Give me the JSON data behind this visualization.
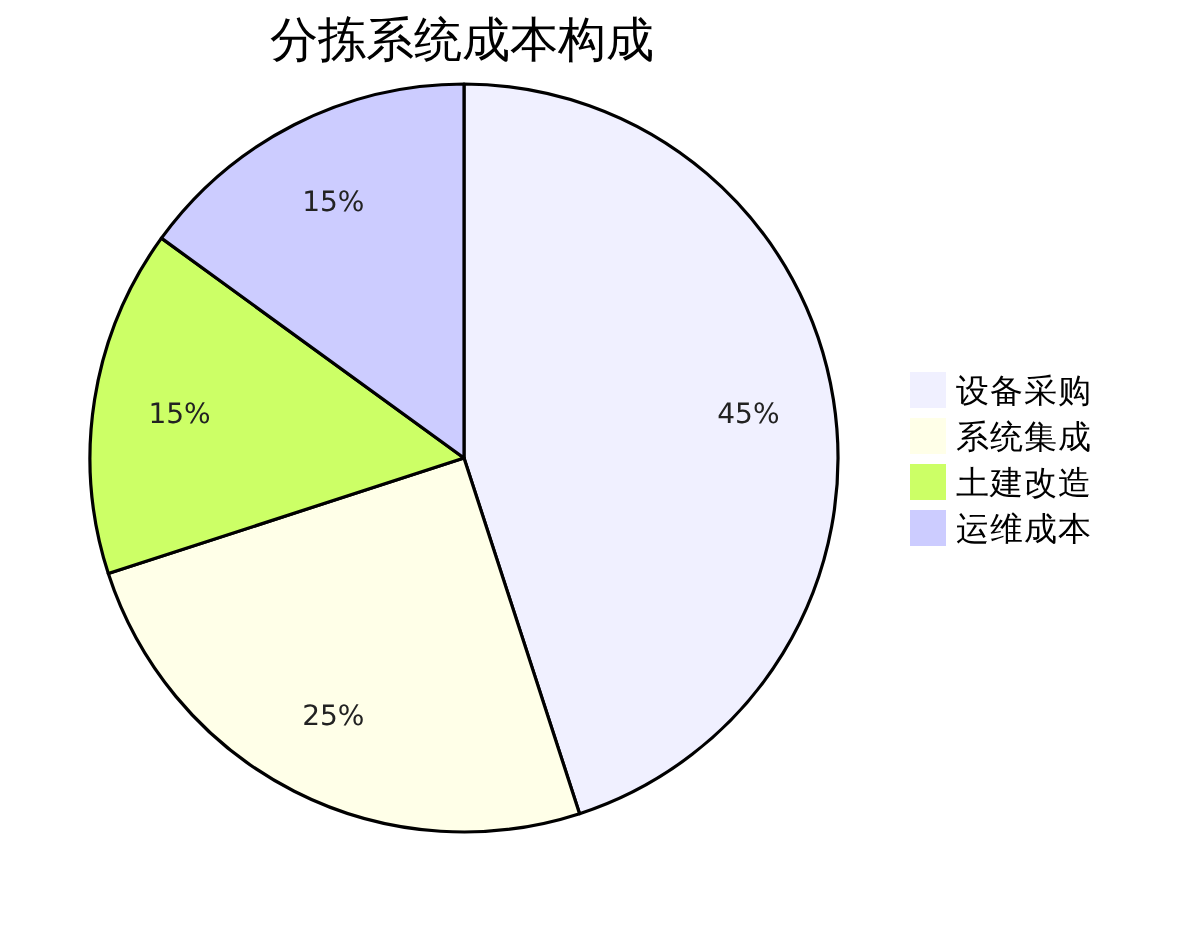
{
  "chart_data": {
    "type": "pie",
    "title": "分拣系统成本构成",
    "categories": [
      "设备采购",
      "系统集成",
      "土建改造",
      "运维成本"
    ],
    "values": [
      45,
      25,
      15,
      15
    ],
    "colors": [
      "#f0f0ff",
      "#ffffe8",
      "#ccff66",
      "#ccccff"
    ],
    "value_labels": [
      "45%",
      "25%",
      "15%",
      "15%"
    ],
    "legend": "right"
  }
}
